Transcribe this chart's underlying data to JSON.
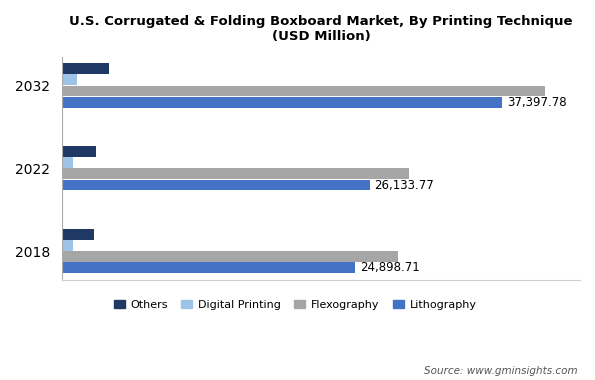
{
  "title": "U.S. Corrugated & Folding Boxboard Market, By Printing Technique\n(USD Million)",
  "years": [
    "2018",
    "2022",
    "2032"
  ],
  "categories": [
    "Others",
    "Digital Printing",
    "Flexography",
    "Lithography"
  ],
  "colors": {
    "Others": "#1f3864",
    "Digital Printing": "#9dc3e6",
    "Flexography": "#a6a6a6",
    "Lithography": "#4472c4"
  },
  "values": {
    "2018": {
      "Others": 2700,
      "Digital Printing": 900,
      "Flexography": 28500,
      "Lithography": 24898.71
    },
    "2022": {
      "Others": 2900,
      "Digital Printing": 900,
      "Flexography": 29500,
      "Lithography": 26133.77
    },
    "2032": {
      "Others": 4000,
      "Digital Printing": 1300,
      "Flexography": 41000,
      "Lithography": 37397.78
    }
  },
  "labels": {
    "2018": "24,898.71",
    "2022": "26,133.77",
    "2032": "37,397.78"
  },
  "xlim": [
    0,
    44000
  ],
  "source": "Source: www.gminsights.com",
  "background_color": "#ffffff"
}
